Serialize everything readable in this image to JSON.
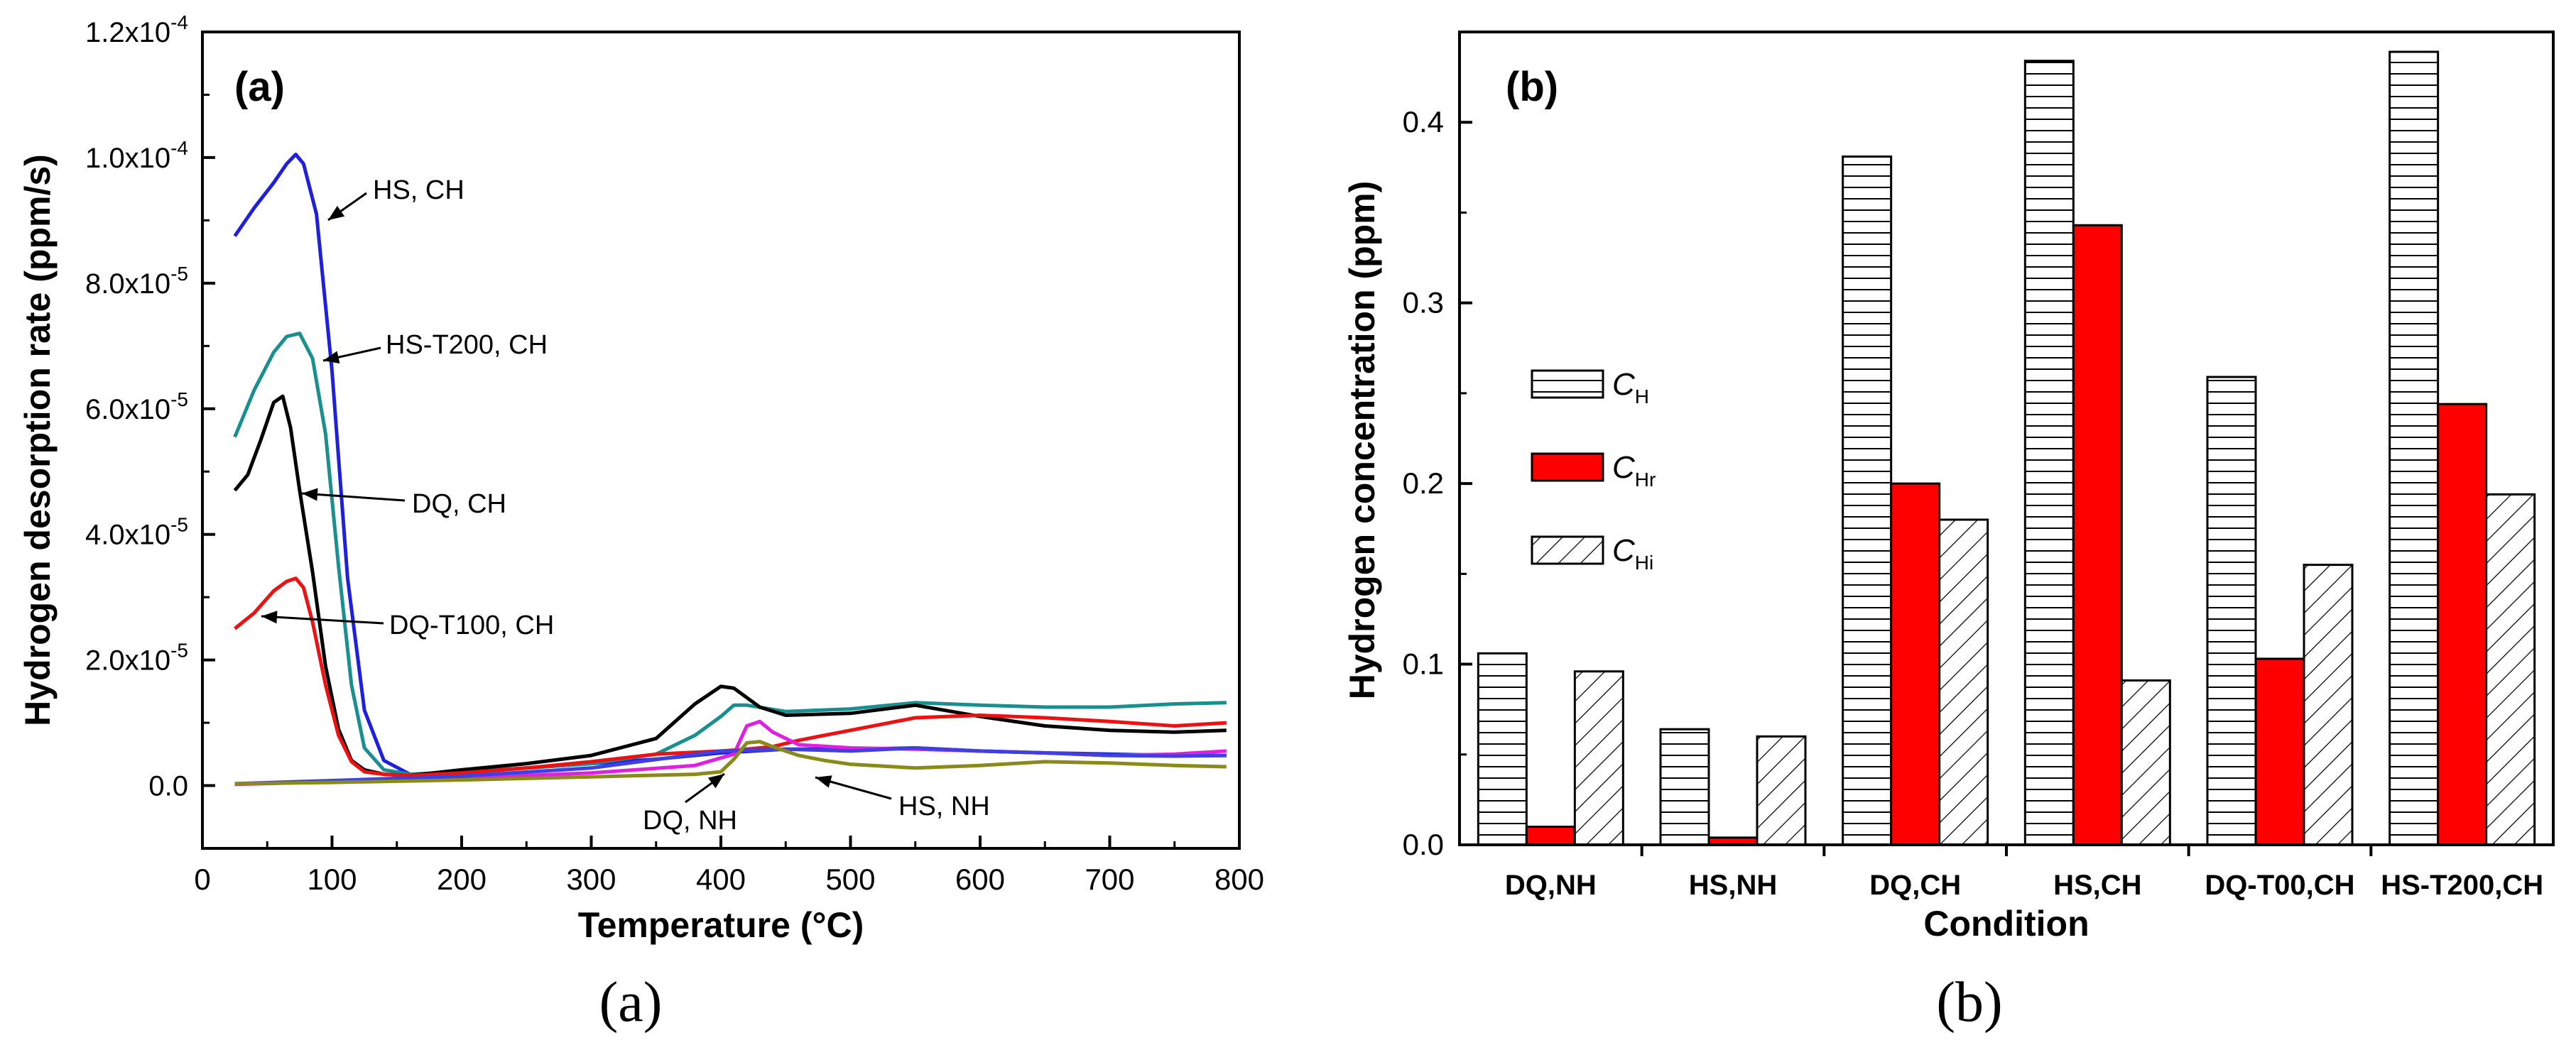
{
  "chart_data": [
    {
      "type": "line",
      "panel_label": "(a)",
      "caption": "(a)",
      "xlabel": "Temperature (°C)",
      "ylabel": "Hydrogen desorption rate (ppm/s)",
      "xlim": [
        0,
        800
      ],
      "ylim": [
        -1e-05,
        0.00012
      ],
      "xticks": [
        "0",
        "100",
        "200",
        "300",
        "400",
        "500",
        "600",
        "700",
        "800"
      ],
      "yticks": [
        {
          "value": 0,
          "mant": "0.0",
          "exp": ""
        },
        {
          "value": 2e-05,
          "mant": "2.0x10",
          "exp": "-5"
        },
        {
          "value": 4e-05,
          "mant": "4.0x10",
          "exp": "-5"
        },
        {
          "value": 6e-05,
          "mant": "6.0x10",
          "exp": "-5"
        },
        {
          "value": 8e-05,
          "mant": "8.0x10",
          "exp": "-5"
        },
        {
          "value": 0.0001,
          "mant": "1.0x10",
          "exp": "-4"
        },
        {
          "value": 0.00012,
          "mant": "1.2x10",
          "exp": "-4"
        }
      ],
      "series": [
        {
          "name": "HS, CH",
          "color": "#1f1fe0",
          "x": [
            25,
            40,
            55,
            65,
            72,
            78,
            88,
            100,
            112,
            125,
            140,
            160,
            200,
            250,
            300,
            350,
            400,
            450,
            500,
            550,
            600,
            650,
            700,
            750,
            790
          ],
          "y": [
            8.75e-05,
            9.2e-05,
            9.6e-05,
            9.9e-05,
            0.0001005,
            9.9e-05,
            9.1e-05,
            6.6e-05,
            3.3e-05,
            1.2e-05,
            4e-06,
            1.8e-06,
            2e-06,
            2.8e-06,
            3.5e-06,
            4.2e-06,
            5.2e-06,
            5.8e-06,
            5.8e-06,
            6e-06,
            5.5e-06,
            5.2e-06,
            5e-06,
            4.8e-06,
            4.8e-06
          ]
        },
        {
          "name": "HS-T200, CH",
          "color": "#1a8f8f",
          "x": [
            25,
            40,
            55,
            65,
            75,
            85,
            95,
            105,
            115,
            125,
            140,
            160,
            200,
            250,
            300,
            350,
            380,
            400,
            410,
            420,
            450,
            500,
            550,
            600,
            650,
            700,
            750,
            790
          ],
          "y": [
            5.55e-05,
            6.3e-05,
            6.9e-05,
            7.15e-05,
            7.2e-05,
            6.8e-05,
            5.6e-05,
            3.5e-05,
            1.6e-05,
            6e-06,
            2.5e-06,
            1.8e-06,
            2.2e-06,
            2.8e-06,
            3.5e-06,
            5e-06,
            8e-06,
            1.1e-05,
            1.28e-05,
            1.28e-05,
            1.18e-05,
            1.22e-05,
            1.32e-05,
            1.28e-05,
            1.25e-05,
            1.25e-05,
            1.3e-05,
            1.32e-05
          ]
        },
        {
          "name": "DQ, CH",
          "color": "#000000",
          "x": [
            25,
            35,
            45,
            55,
            62,
            68,
            75,
            85,
            95,
            105,
            115,
            125,
            140,
            160,
            200,
            250,
            300,
            350,
            380,
            400,
            410,
            430,
            450,
            500,
            550,
            600,
            650,
            700,
            750,
            790
          ],
          "y": [
            4.7e-05,
            4.95e-05,
            5.5e-05,
            6.1e-05,
            6.2e-05,
            5.7e-05,
            4.7e-05,
            3.4e-05,
            1.9e-05,
            9e-06,
            4e-06,
            2.5e-06,
            1.8e-06,
            1.6e-06,
            2.5e-06,
            3.5e-06,
            4.8e-06,
            7.5e-06,
            1.3e-05,
            1.58e-05,
            1.55e-05,
            1.25e-05,
            1.12e-05,
            1.15e-05,
            1.28e-05,
            1.1e-05,
            9.5e-06,
            8.8e-06,
            8.5e-06,
            8.8e-06
          ]
        },
        {
          "name": "DQ-T100, CH",
          "color": "#ee1111",
          "x": [
            25,
            40,
            55,
            65,
            72,
            78,
            85,
            95,
            105,
            115,
            125,
            140,
            160,
            200,
            250,
            300,
            350,
            400,
            420,
            440,
            460,
            500,
            550,
            600,
            650,
            700,
            750,
            790
          ],
          "y": [
            2.5e-05,
            2.75e-05,
            3.1e-05,
            3.25e-05,
            3.3e-05,
            3.15e-05,
            2.6e-05,
            1.6e-05,
            8e-06,
            3.8e-06,
            2.2e-06,
            1.8e-06,
            1.6e-06,
            2e-06,
            2.8e-06,
            3.8e-06,
            5e-06,
            5.5e-06,
            5.8e-06,
            6.2e-06,
            7.2e-06,
            8.8e-06,
            1.08e-05,
            1.12e-05,
            1.08e-05,
            1.02e-05,
            9.5e-06,
            1e-05
          ]
        },
        {
          "name": "magenta",
          "color": "#e020e0",
          "x": [
            25,
            100,
            200,
            300,
            380,
            410,
            420,
            430,
            440,
            460,
            500,
            550,
            600,
            650,
            700,
            750,
            790
          ],
          "y": [
            2e-07,
            6e-07,
            1.2e-06,
            2e-06,
            3.2e-06,
            5e-06,
            9.5e-06,
            1.02e-05,
            8.5e-06,
            6.5e-06,
            6e-06,
            5.8e-06,
            5.5e-06,
            5.2e-06,
            4.8e-06,
            5e-06,
            5.5e-06
          ]
        },
        {
          "name": "DQ, NH",
          "color": "#4040e0",
          "x": [
            25,
            100,
            200,
            300,
            400,
            450,
            500,
            550,
            600,
            650,
            700,
            750,
            790
          ],
          "y": [
            3e-07,
            8e-07,
            1.5e-06,
            2.8e-06,
            5.5e-06,
            5.8e-06,
            5.5e-06,
            6e-06,
            5.5e-06,
            5.2e-06,
            4.8e-06,
            4.7e-06,
            4.8e-06
          ]
        },
        {
          "name": "HS, NH",
          "color": "#8a8a1a",
          "x": [
            25,
            100,
            200,
            300,
            380,
            400,
            410,
            420,
            430,
            440,
            460,
            480,
            500,
            550,
            600,
            650,
            700,
            750,
            790
          ],
          "y": [
            3e-07,
            5e-07,
            9e-07,
            1.4e-06,
            1.8e-06,
            2.2e-06,
            4.2e-06,
            6.8e-06,
            7e-06,
            6.2e-06,
            4.8e-06,
            4e-06,
            3.4e-06,
            2.8e-06,
            3.2e-06,
            3.8e-06,
            3.6e-06,
            3.2e-06,
            3e-06
          ]
        }
      ],
      "annotations": [
        {
          "text": "HS, CH",
          "series": 0
        },
        {
          "text": "HS-T200, CH",
          "series": 1
        },
        {
          "text": "DQ, CH",
          "series": 2
        },
        {
          "text": "DQ-T100, CH",
          "series": 3
        },
        {
          "text": "DQ, NH",
          "series": 5
        },
        {
          "text": "HS, NH",
          "series": 6
        }
      ]
    },
    {
      "type": "bar",
      "panel_label": "(b)",
      "caption": "(b)",
      "xlabel": "Condition",
      "ylabel": "Hydrogen concentration (ppm)",
      "ylim": [
        0,
        0.45
      ],
      "yticks": [
        "0.0",
        "0.1",
        "0.2",
        "0.3",
        "0.4"
      ],
      "categories": [
        "DQ,NH",
        "HS,NH",
        "DQ,CH",
        "HS,CH",
        "DQ-T00,CH",
        "HS-T200,CH"
      ],
      "series": [
        {
          "name": "C",
          "sub": "H",
          "pattern": "horizontal-lines",
          "values": [
            0.106,
            0.064,
            0.381,
            0.434,
            0.259,
            0.439
          ]
        },
        {
          "name": "C",
          "sub": "Hr",
          "pattern": "solid-red",
          "color": "#ff0000",
          "values": [
            0.01,
            0.004,
            0.2,
            0.343,
            0.103,
            0.244
          ]
        },
        {
          "name": "C",
          "sub": "Hi",
          "pattern": "diagonal-lines",
          "values": [
            0.096,
            0.06,
            0.18,
            0.091,
            0.155,
            0.194
          ]
        }
      ],
      "legend": "center-left"
    }
  ]
}
